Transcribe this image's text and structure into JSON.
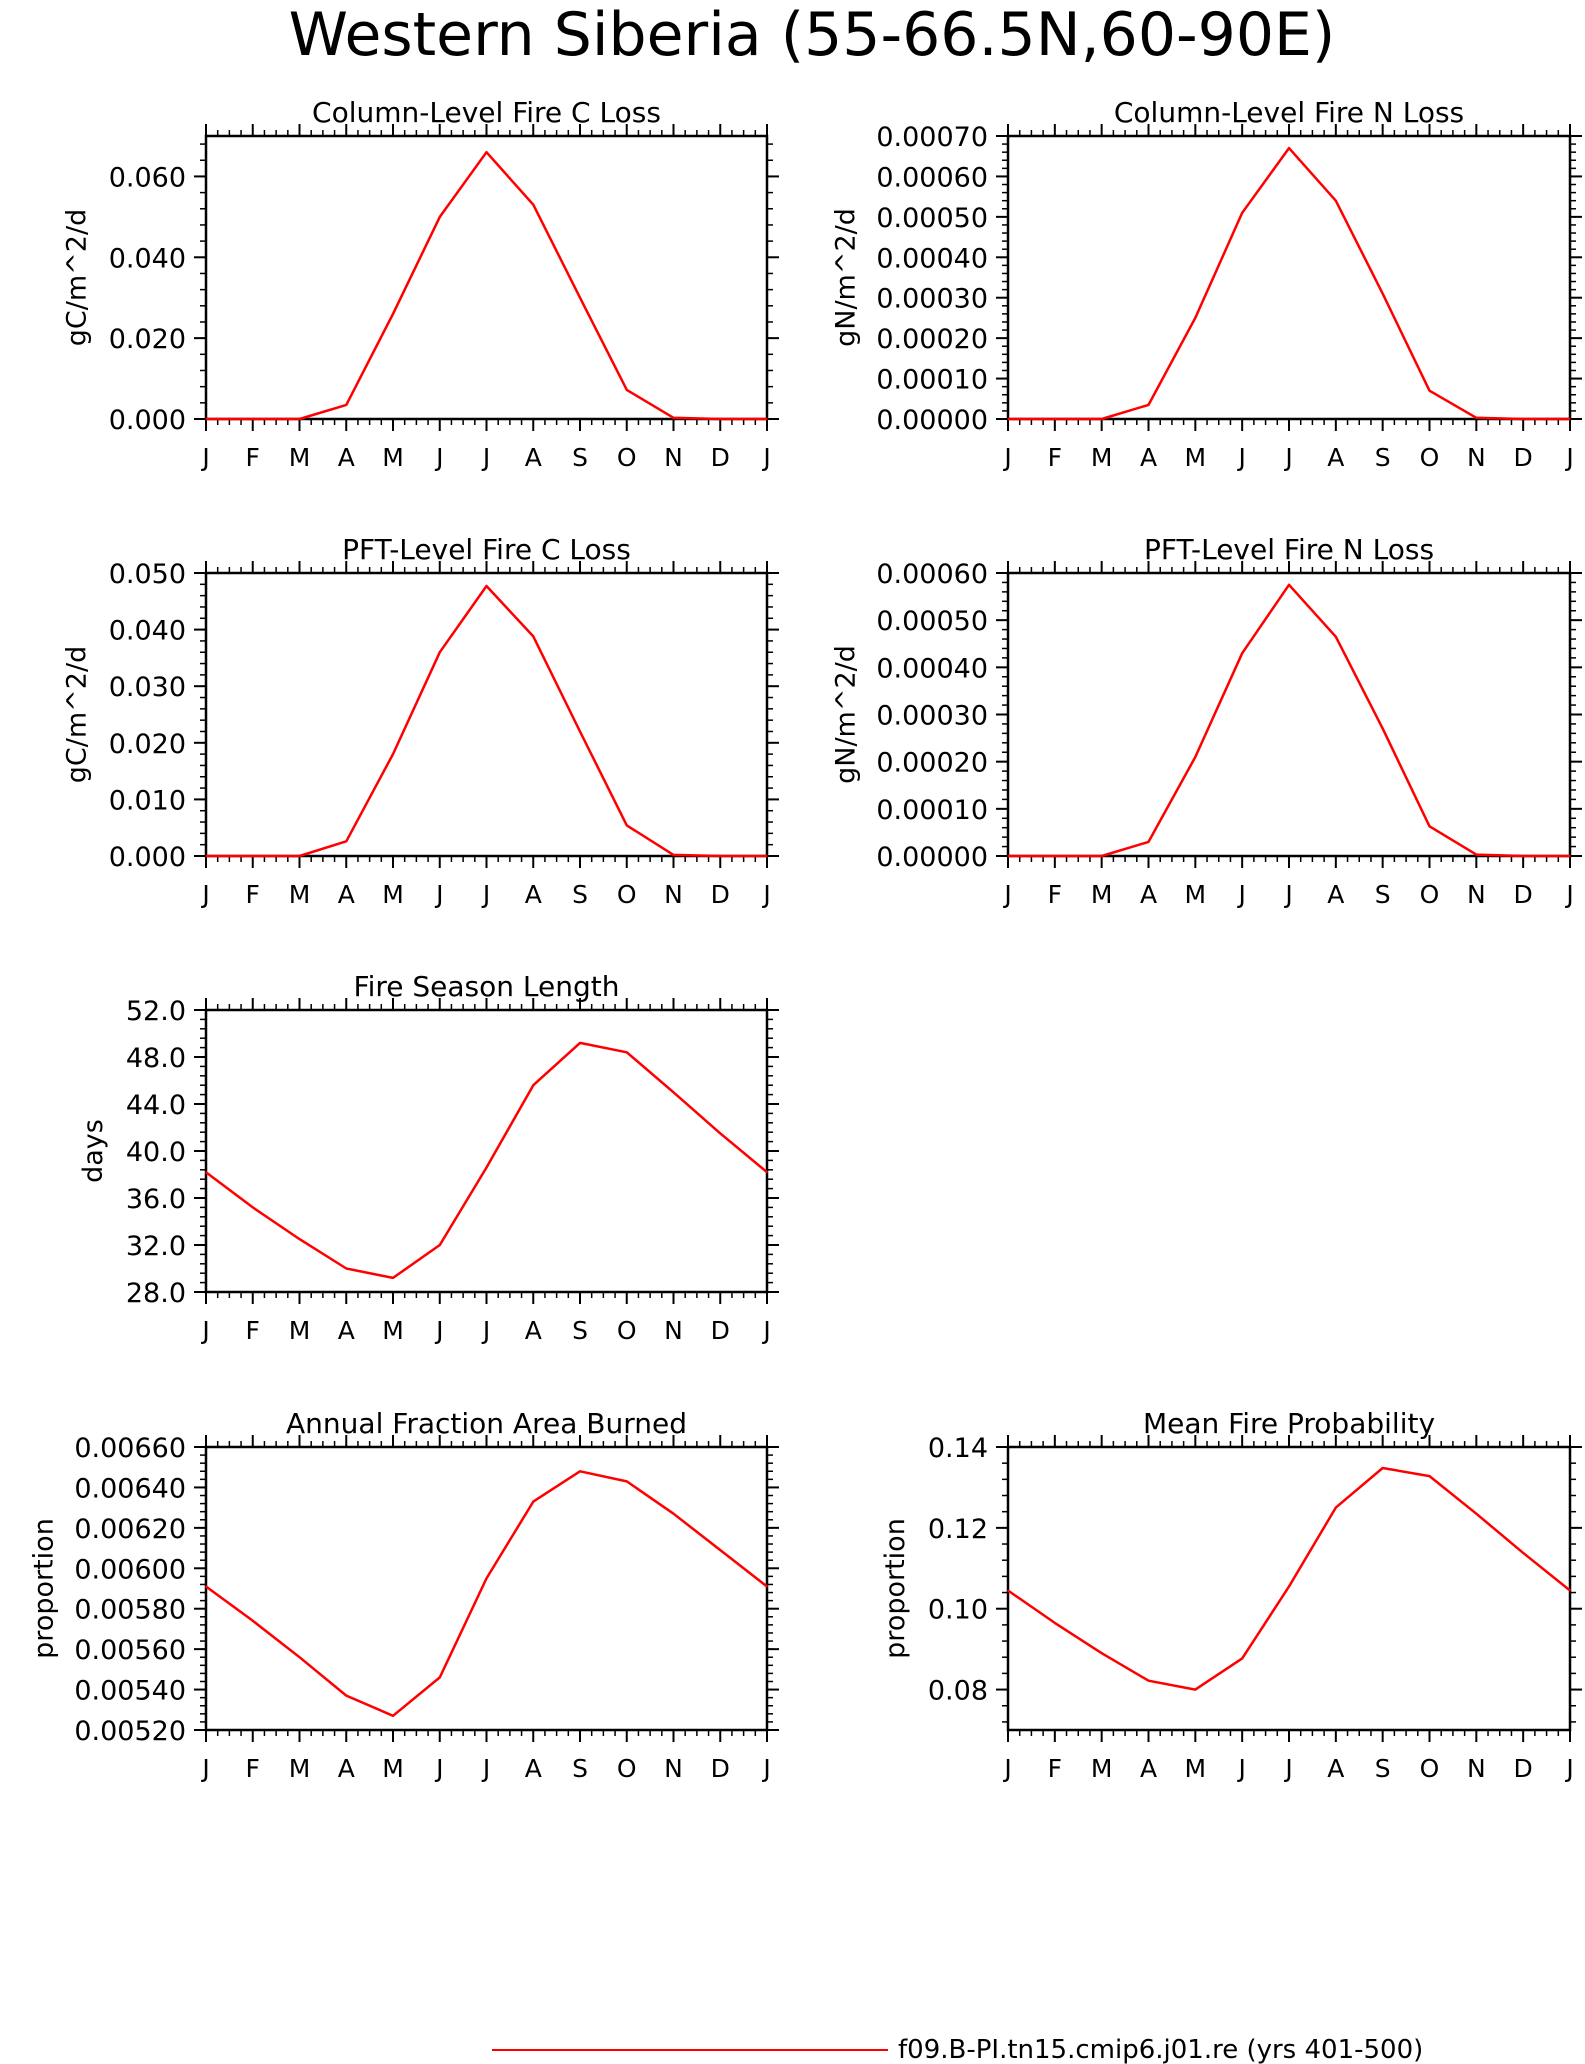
{
  "figure": {
    "title": "Western Siberia (55-66.5N,60-90E)",
    "legend_label": "f09.B-PI.tn15.cmip6.j01.re (yrs 401-500)",
    "line_color": "#ff0000"
  },
  "chart_data": [
    {
      "type": "line",
      "title": "Column-Level Fire C Loss",
      "ylabel": "gC/m^2/d",
      "categories": [
        "J",
        "F",
        "M",
        "A",
        "M",
        "J",
        "J",
        "A",
        "S",
        "O",
        "N",
        "D",
        "J"
      ],
      "ylim": [
        0,
        0.07
      ],
      "yticks": [
        "0.000",
        "0.020",
        "0.040",
        "0.060"
      ],
      "series": [
        {
          "values": [
            0.0,
            0.0,
            0.0,
            0.0035,
            0.026,
            0.05,
            0.066,
            0.053,
            0.03,
            0.0072,
            0.0003,
            0.0,
            0.0
          ]
        }
      ]
    },
    {
      "type": "line",
      "title": "Column-Level Fire N Loss",
      "ylabel": "gN/m^2/d",
      "categories": [
        "J",
        "F",
        "M",
        "A",
        "M",
        "J",
        "J",
        "A",
        "S",
        "O",
        "N",
        "D",
        "J"
      ],
      "ylim": [
        0,
        0.0007
      ],
      "yticks": [
        "0.00000",
        "0.00010",
        "0.00020",
        "0.00030",
        "0.00040",
        "0.00050",
        "0.00060",
        "0.00070"
      ],
      "series": [
        {
          "values": [
            0.0,
            0.0,
            0.0,
            3.5e-05,
            0.00025,
            0.00051,
            0.00067,
            0.00054,
            0.00031,
            7e-05,
            3e-06,
            0.0,
            0.0
          ]
        }
      ]
    },
    {
      "type": "line",
      "title": "PFT-Level Fire C Loss",
      "ylabel": "gC/m^2/d",
      "categories": [
        "J",
        "F",
        "M",
        "A",
        "M",
        "J",
        "J",
        "A",
        "S",
        "O",
        "N",
        "D",
        "J"
      ],
      "ylim": [
        0,
        0.05
      ],
      "yticks": [
        "0.000",
        "0.010",
        "0.020",
        "0.030",
        "0.040",
        "0.050"
      ],
      "series": [
        {
          "values": [
            0.0,
            0.0,
            0.0,
            0.0026,
            0.018,
            0.036,
            0.0477,
            0.0388,
            0.022,
            0.0054,
            0.0002,
            0.0,
            0.0
          ]
        }
      ]
    },
    {
      "type": "line",
      "title": "PFT-Level Fire N Loss",
      "ylabel": "gN/m^2/d",
      "categories": [
        "J",
        "F",
        "M",
        "A",
        "M",
        "J",
        "J",
        "A",
        "S",
        "O",
        "N",
        "D",
        "J"
      ],
      "ylim": [
        0,
        0.0006
      ],
      "yticks": [
        "0.00000",
        "0.00010",
        "0.00020",
        "0.00030",
        "0.00040",
        "0.00050",
        "0.00060"
      ],
      "series": [
        {
          "values": [
            0.0,
            0.0,
            0.0,
            3e-05,
            0.00021,
            0.00043,
            0.000575,
            0.000465,
            0.00027,
            6.3e-05,
            3e-06,
            0.0,
            0.0
          ]
        }
      ]
    },
    {
      "type": "line",
      "title": "Fire Season Length",
      "ylabel": "days",
      "categories": [
        "J",
        "F",
        "M",
        "A",
        "M",
        "J",
        "J",
        "A",
        "S",
        "O",
        "N",
        "D",
        "J"
      ],
      "ylim": [
        28,
        52
      ],
      "yticks": [
        "28.0",
        "32.0",
        "36.0",
        "40.0",
        "44.0",
        "48.0",
        "52.0"
      ],
      "series": [
        {
          "values": [
            38.2,
            35.2,
            32.5,
            30.0,
            29.2,
            32.0,
            38.6,
            45.6,
            49.2,
            48.4,
            45.0,
            41.5,
            38.2
          ]
        }
      ]
    },
    {
      "type": "line",
      "title": "Annual Fraction Area Burned",
      "ylabel": "proportion",
      "categories": [
        "J",
        "F",
        "M",
        "A",
        "M",
        "J",
        "J",
        "A",
        "S",
        "O",
        "N",
        "D",
        "J"
      ],
      "ylim": [
        0.0052,
        0.0066
      ],
      "yticks": [
        "0.00520",
        "0.00540",
        "0.00560",
        "0.00580",
        "0.00600",
        "0.00620",
        "0.00640",
        "0.00660"
      ],
      "series": [
        {
          "values": [
            0.00591,
            0.00574,
            0.00556,
            0.00537,
            0.00527,
            0.00546,
            0.00595,
            0.00633,
            0.00648,
            0.00643,
            0.00627,
            0.00609,
            0.00591
          ]
        }
      ]
    },
    {
      "type": "line",
      "title": "Mean Fire Probability",
      "ylabel": "proportion",
      "categories": [
        "J",
        "F",
        "M",
        "A",
        "M",
        "J",
        "J",
        "A",
        "S",
        "O",
        "N",
        "D",
        "J"
      ],
      "ylim": [
        0.07,
        0.14
      ],
      "yticks": [
        "0.08",
        "0.10",
        "0.12",
        "0.14"
      ],
      "series": [
        {
          "values": [
            0.1045,
            0.0965,
            0.089,
            0.0822,
            0.08,
            0.0877,
            0.1055,
            0.125,
            0.1348,
            0.1328,
            0.1235,
            0.1138,
            0.1045
          ]
        }
      ]
    }
  ]
}
